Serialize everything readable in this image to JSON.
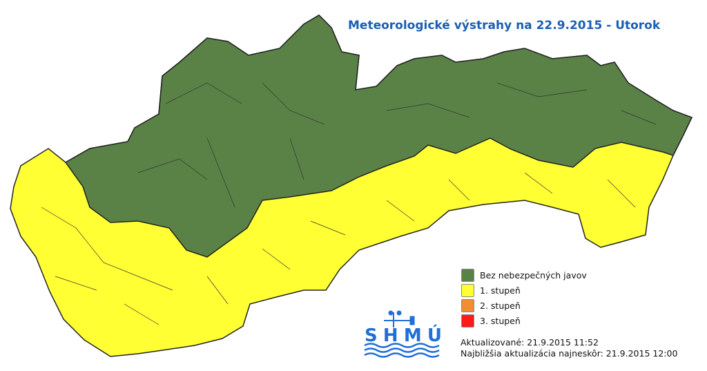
{
  "title": "Meteorologické výstrahy na 22.9.2015 - Utorok",
  "map": {
    "regions": [
      {
        "level": "Bez nebezpečných javov",
        "color": "#5a8246"
      },
      {
        "level": "1. stupeň",
        "color": "#ffff33"
      }
    ]
  },
  "legend": [
    {
      "label": "Bez nebezpečných javov",
      "color": "#5a8246"
    },
    {
      "label": "1. stupeň",
      "color": "#ffff33"
    },
    {
      "label": "2. stupeň",
      "color": "#f28c30"
    },
    {
      "label": "3. stupeň",
      "color": "#ff1a1a"
    }
  ],
  "logo": {
    "text": "SHMÚ",
    "color": "#1e6fd9"
  },
  "updated": "Aktualizované: 21.9.2015 11:52",
  "next_update": "Najbližšia aktualizácia najneskôr: 21.9.2015 12:00"
}
